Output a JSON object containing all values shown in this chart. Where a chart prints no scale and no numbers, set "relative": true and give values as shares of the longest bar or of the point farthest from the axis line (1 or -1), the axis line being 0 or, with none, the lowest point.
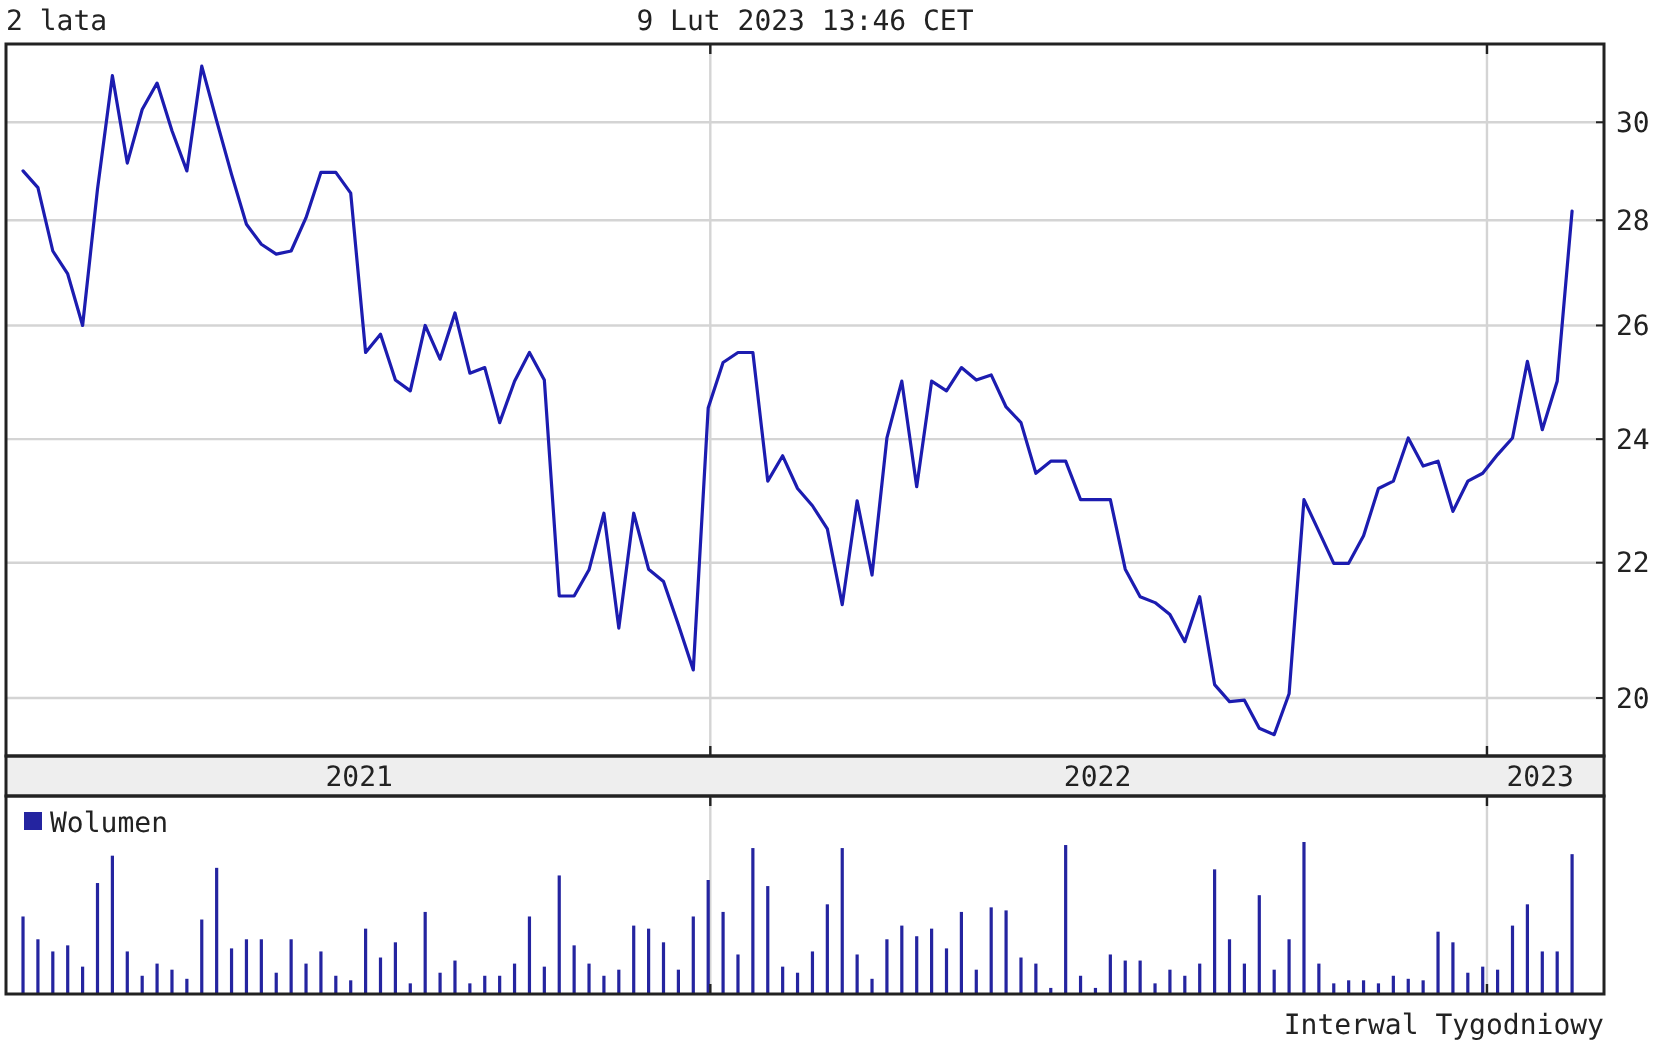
{
  "chart_data": [
    {
      "type": "line",
      "title": "2 lata",
      "subtitle": "9 Lut 2023 13:46 CET",
      "x": [
        "2021-02-12",
        "2021-02-19",
        "2021-02-26",
        "2021-03-05",
        "2021-03-12",
        "2021-03-19",
        "2021-03-26",
        "2021-04-02",
        "2021-04-09",
        "2021-04-16",
        "2021-04-23",
        "2021-04-30",
        "2021-05-07",
        "2021-05-14",
        "2021-05-21",
        "2021-05-28",
        "2021-06-04",
        "2021-06-11",
        "2021-06-18",
        "2021-06-25",
        "2021-07-02",
        "2021-07-09",
        "2021-07-16",
        "2021-07-23",
        "2021-07-30",
        "2021-08-06",
        "2021-08-13",
        "2021-08-20",
        "2021-08-27",
        "2021-09-03",
        "2021-09-10",
        "2021-09-17",
        "2021-09-24",
        "2021-10-01",
        "2021-10-08",
        "2021-10-15",
        "2021-10-22",
        "2021-10-29",
        "2021-11-05",
        "2021-11-12",
        "2021-11-19",
        "2021-11-26",
        "2021-12-03",
        "2021-12-10",
        "2021-12-17",
        "2021-12-24",
        "2021-12-31",
        "2022-01-07",
        "2022-01-14",
        "2022-01-21",
        "2022-01-28",
        "2022-02-04",
        "2022-02-11",
        "2022-02-18",
        "2022-02-25",
        "2022-03-04",
        "2022-03-11",
        "2022-03-18",
        "2022-03-25",
        "2022-04-01",
        "2022-04-08",
        "2022-04-15",
        "2022-04-22",
        "2022-04-29",
        "2022-05-06",
        "2022-05-13",
        "2022-05-20",
        "2022-05-27",
        "2022-06-03",
        "2022-06-10",
        "2022-06-17",
        "2022-06-24",
        "2022-07-01",
        "2022-07-08",
        "2022-07-15",
        "2022-07-22",
        "2022-07-29",
        "2022-08-05",
        "2022-08-12",
        "2022-08-19",
        "2022-08-26",
        "2022-09-02",
        "2022-09-09",
        "2022-09-16",
        "2022-09-23",
        "2022-09-30",
        "2022-10-07",
        "2022-10-14",
        "2022-10-21",
        "2022-10-28",
        "2022-11-04",
        "2022-11-11",
        "2022-11-18",
        "2022-11-25",
        "2022-12-02",
        "2022-12-09",
        "2022-12-16",
        "2022-12-23",
        "2022-12-30",
        "2023-01-06",
        "2023-01-13",
        "2023-01-20",
        "2023-01-27",
        "2023-02-03",
        "2023-02-10"
      ],
      "series": [
        {
          "color": "#1c1cb0",
          "values": [
            28.99,
            28.65,
            27.4,
            26.96,
            26.0,
            28.62,
            31.0,
            29.15,
            30.27,
            30.84,
            29.82,
            28.99,
            31.21,
            30.03,
            28.92,
            27.92,
            27.53,
            27.34,
            27.4,
            28.05,
            28.96,
            28.96,
            28.54,
            25.51,
            25.84,
            25.02,
            24.83,
            26.0,
            25.39,
            26.23,
            25.14,
            25.24,
            24.28,
            25.0,
            25.51,
            25.02,
            21.49,
            21.49,
            21.89,
            22.78,
            21.01,
            22.78,
            21.9,
            21.71,
            21.06,
            20.4,
            24.53,
            25.33,
            25.51,
            25.51,
            23.3,
            23.72,
            23.18,
            22.9,
            22.53,
            21.36,
            22.98,
            21.81,
            24.02,
            25.0,
            23.21,
            25.0,
            24.83,
            25.24,
            25.02,
            25.11,
            24.55,
            24.28,
            23.43,
            23.63,
            23.63,
            23.0,
            23.0,
            23.0,
            21.9,
            21.48,
            21.39,
            21.21,
            20.81,
            21.48,
            20.19,
            19.95,
            19.97,
            19.58,
            19.49,
            20.06,
            23.0,
            22.49,
            21.99,
            21.99,
            22.42,
            23.18,
            23.3,
            24.02,
            23.55,
            23.63,
            22.81,
            23.3,
            23.43,
            23.74,
            24.02,
            25.35,
            24.16,
            25.0,
            28.18
          ]
        }
      ],
      "xlim": [
        "2021-02-04",
        "2023-02-25"
      ],
      "xticks": [
        {
          "value": "2021-07-20",
          "label": "2021"
        },
        {
          "value": "2022-01-01",
          "label": null
        },
        {
          "value": "2022-07-02",
          "label": "2022"
        },
        {
          "value": "2023-01-01",
          "label": null
        },
        {
          "value": "2023-01-26",
          "label": "2023"
        }
      ],
      "ylim": [
        19.2,
        31.7
      ],
      "yticks": [
        20,
        22,
        24,
        26,
        28,
        30
      ],
      "log": "y",
      "grid": true
    },
    {
      "type": "bar",
      "relative": true,
      "x": [
        "2021-02-12",
        "2021-02-19",
        "2021-02-26",
        "2021-03-05",
        "2021-03-12",
        "2021-03-19",
        "2021-03-26",
        "2021-04-02",
        "2021-04-09",
        "2021-04-16",
        "2021-04-23",
        "2021-04-30",
        "2021-05-07",
        "2021-05-14",
        "2021-05-21",
        "2021-05-28",
        "2021-06-04",
        "2021-06-11",
        "2021-06-18",
        "2021-06-25",
        "2021-07-02",
        "2021-07-09",
        "2021-07-16",
        "2021-07-23",
        "2021-07-30",
        "2021-08-06",
        "2021-08-13",
        "2021-08-20",
        "2021-08-27",
        "2021-09-03",
        "2021-09-10",
        "2021-09-17",
        "2021-09-24",
        "2021-10-01",
        "2021-10-08",
        "2021-10-15",
        "2021-10-22",
        "2021-10-29",
        "2021-11-05",
        "2021-11-12",
        "2021-11-19",
        "2021-11-26",
        "2021-12-03",
        "2021-12-10",
        "2021-12-17",
        "2021-12-24",
        "2021-12-31",
        "2022-01-07",
        "2022-01-14",
        "2022-01-21",
        "2022-01-28",
        "2022-02-04",
        "2022-02-11",
        "2022-02-18",
        "2022-02-25",
        "2022-03-04",
        "2022-03-11",
        "2022-03-18",
        "2022-03-25",
        "2022-04-01",
        "2022-04-08",
        "2022-04-15",
        "2022-04-22",
        "2022-04-29",
        "2022-05-06",
        "2022-05-13",
        "2022-05-20",
        "2022-05-27",
        "2022-06-03",
        "2022-06-10",
        "2022-06-17",
        "2022-06-24",
        "2022-07-01",
        "2022-07-08",
        "2022-07-15",
        "2022-07-22",
        "2022-07-29",
        "2022-08-05",
        "2022-08-12",
        "2022-08-19",
        "2022-08-26",
        "2022-09-02",
        "2022-09-09",
        "2022-09-16",
        "2022-09-23",
        "2022-09-30",
        "2022-10-07",
        "2022-10-14",
        "2022-10-21",
        "2022-10-28",
        "2022-11-04",
        "2022-11-11",
        "2022-11-18",
        "2022-11-25",
        "2022-12-02",
        "2022-12-09",
        "2022-12-16",
        "2022-12-23",
        "2022-12-30",
        "2023-01-06",
        "2023-01-13",
        "2023-01-20",
        "2023-01-27",
        "2023-02-03",
        "2023-02-10"
      ],
      "series": [
        {
          "name": "Wolumen",
          "color": "#2424a0",
          "values": [
            0.51,
            0.36,
            0.28,
            0.32,
            0.18,
            0.73,
            0.91,
            0.28,
            0.12,
            0.2,
            0.16,
            0.1,
            0.49,
            0.83,
            0.3,
            0.36,
            0.36,
            0.14,
            0.36,
            0.2,
            0.28,
            0.12,
            0.09,
            0.43,
            0.24,
            0.34,
            0.07,
            0.54,
            0.14,
            0.22,
            0.07,
            0.12,
            0.12,
            0.2,
            0.51,
            0.18,
            0.78,
            0.32,
            0.2,
            0.12,
            0.16,
            0.45,
            0.43,
            0.34,
            0.16,
            0.51,
            0.75,
            0.54,
            0.26,
            0.96,
            0.71,
            0.18,
            0.14,
            0.28,
            0.59,
            0.96,
            0.26,
            0.1,
            0.36,
            0.45,
            0.38,
            0.43,
            0.3,
            0.54,
            0.16,
            0.57,
            0.55,
            0.24,
            0.2,
            0.04,
            0.98,
            0.12,
            0.04,
            0.26,
            0.22,
            0.22,
            0.07,
            0.16,
            0.12,
            0.2,
            0.82,
            0.36,
            0.2,
            0.65,
            0.16,
            0.36,
            1,
            0.2,
            0.07,
            0.09,
            0.09,
            0.07,
            0.12,
            0.1,
            0.09,
            0.41,
            0.34,
            0.14,
            0.18,
            0.16,
            0.45,
            0.59,
            0.28,
            0.28,
            0.92
          ]
        }
      ],
      "xlim": [
        "2021-02-04",
        "2023-02-25"
      ],
      "xticks": [
        {
          "value": "2022-01-01",
          "label": null
        },
        {
          "value": "2023-01-01",
          "label": null
        }
      ],
      "grid": "x",
      "legend": "top left",
      "tick_labels": false,
      "annotations": [
        "Interwal Tygodniowy"
      ]
    }
  ]
}
